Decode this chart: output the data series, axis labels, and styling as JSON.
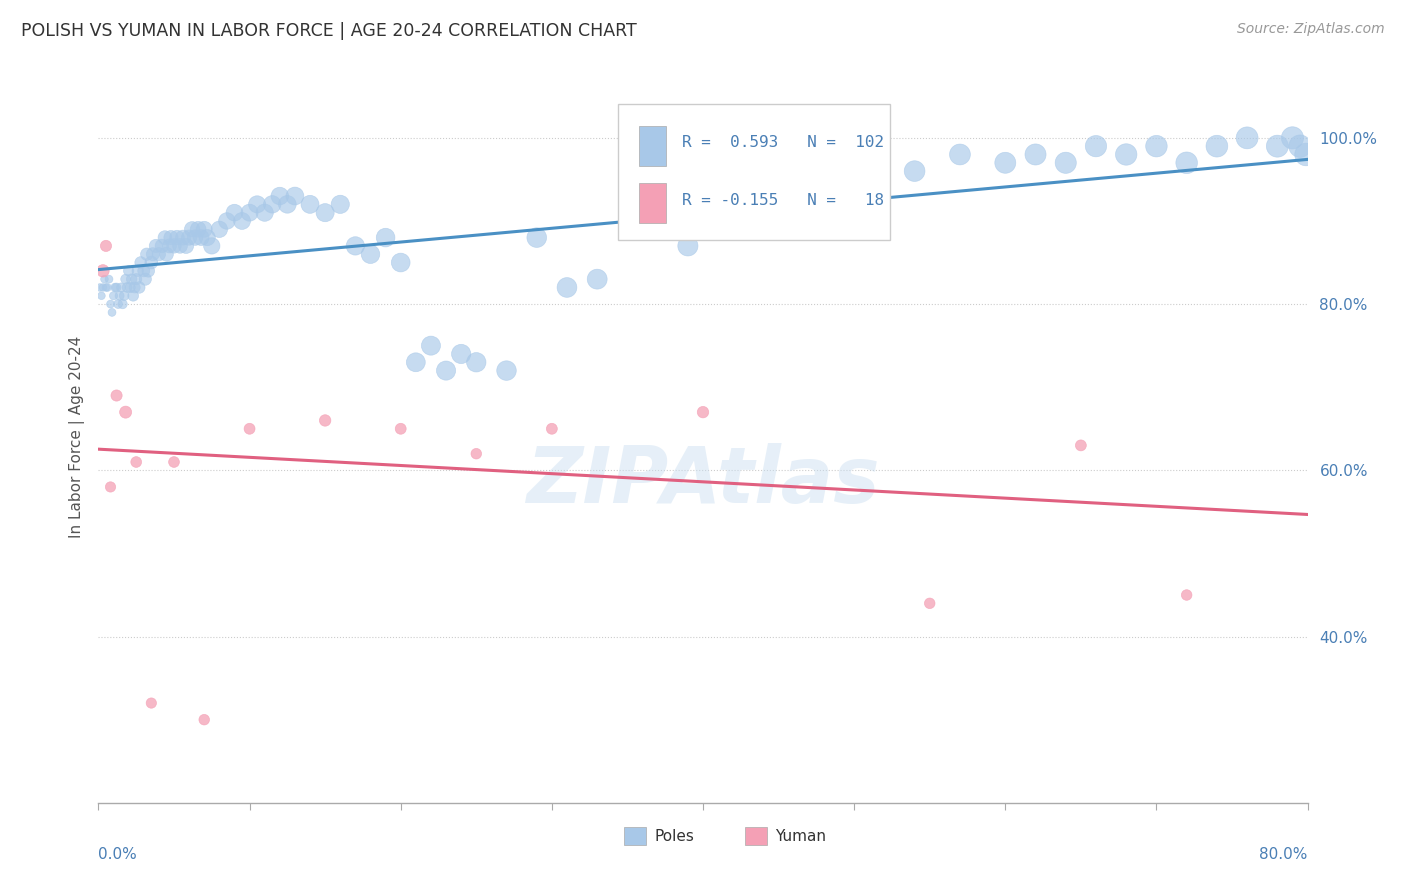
{
  "title": "POLISH VS YUMAN IN LABOR FORCE | AGE 20-24 CORRELATION CHART",
  "source": "Source: ZipAtlas.com",
  "ylabel": "In Labor Force | Age 20-24",
  "xmin": 0.0,
  "xmax": 0.8,
  "ymin": 0.2,
  "ymax": 1.08,
  "right_yticks": [
    0.4,
    0.6,
    0.8,
    1.0
  ],
  "right_yticklabels": [
    "40.0%",
    "60.0%",
    "80.0%",
    "100.0%"
  ],
  "poles_R": 0.593,
  "poles_N": 102,
  "yuman_R": -0.155,
  "yuman_N": 18,
  "blue_color": "#a8c8e8",
  "pink_color": "#f4a0b5",
  "blue_line_color": "#4a90c4",
  "pink_line_color": "#e06080",
  "legend_text_color": "#4a7fb5",
  "title_color": "#333333",
  "background_color": "#ffffff",
  "poles_x": [
    0.001,
    0.002,
    0.003,
    0.004,
    0.005,
    0.006,
    0.007,
    0.008,
    0.009,
    0.01,
    0.011,
    0.012,
    0.013,
    0.014,
    0.015,
    0.016,
    0.017,
    0.018,
    0.019,
    0.02,
    0.021,
    0.022,
    0.023,
    0.024,
    0.025,
    0.026,
    0.027,
    0.028,
    0.03,
    0.031,
    0.032,
    0.033,
    0.035,
    0.036,
    0.038,
    0.04,
    0.042,
    0.044,
    0.045,
    0.047,
    0.048,
    0.05,
    0.052,
    0.054,
    0.056,
    0.058,
    0.06,
    0.062,
    0.064,
    0.066,
    0.068,
    0.07,
    0.072,
    0.075,
    0.08,
    0.085,
    0.09,
    0.095,
    0.1,
    0.105,
    0.11,
    0.115,
    0.12,
    0.125,
    0.13,
    0.14,
    0.15,
    0.16,
    0.17,
    0.18,
    0.19,
    0.2,
    0.21,
    0.22,
    0.23,
    0.24,
    0.25,
    0.27,
    0.29,
    0.31,
    0.33,
    0.36,
    0.39,
    0.42,
    0.45,
    0.48,
    0.51,
    0.54,
    0.57,
    0.6,
    0.62,
    0.64,
    0.66,
    0.68,
    0.7,
    0.72,
    0.74,
    0.76,
    0.78,
    0.79,
    0.795,
    0.799
  ],
  "poles_y": [
    0.82,
    0.81,
    0.82,
    0.83,
    0.82,
    0.82,
    0.83,
    0.8,
    0.79,
    0.81,
    0.82,
    0.82,
    0.8,
    0.81,
    0.82,
    0.8,
    0.81,
    0.83,
    0.82,
    0.84,
    0.82,
    0.83,
    0.81,
    0.82,
    0.83,
    0.84,
    0.82,
    0.85,
    0.84,
    0.83,
    0.86,
    0.84,
    0.85,
    0.86,
    0.87,
    0.86,
    0.87,
    0.88,
    0.86,
    0.87,
    0.88,
    0.87,
    0.88,
    0.87,
    0.88,
    0.87,
    0.88,
    0.89,
    0.88,
    0.89,
    0.88,
    0.89,
    0.88,
    0.87,
    0.89,
    0.9,
    0.91,
    0.9,
    0.91,
    0.92,
    0.91,
    0.92,
    0.93,
    0.92,
    0.93,
    0.92,
    0.91,
    0.92,
    0.87,
    0.86,
    0.88,
    0.85,
    0.73,
    0.75,
    0.72,
    0.74,
    0.73,
    0.72,
    0.88,
    0.82,
    0.83,
    0.94,
    0.87,
    0.93,
    0.95,
    0.94,
    0.97,
    0.96,
    0.98,
    0.97,
    0.98,
    0.97,
    0.99,
    0.98,
    0.99,
    0.97,
    0.99,
    1.0,
    0.99,
    1.0,
    0.99,
    0.98
  ],
  "poles_sizes": [
    30,
    30,
    30,
    30,
    30,
    32,
    32,
    32,
    32,
    35,
    38,
    40,
    40,
    42,
    42,
    45,
    48,
    50,
    50,
    55,
    55,
    58,
    60,
    62,
    65,
    68,
    70,
    72,
    75,
    78,
    80,
    82,
    85,
    88,
    90,
    92,
    95,
    98,
    100,
    102,
    105,
    108,
    110,
    112,
    115,
    118,
    120,
    122,
    125,
    128,
    130,
    132,
    135,
    138,
    140,
    142,
    145,
    148,
    150,
    152,
    155,
    158,
    160,
    162,
    165,
    168,
    170,
    172,
    175,
    178,
    180,
    182,
    185,
    188,
    190,
    192,
    195,
    198,
    200,
    202,
    205,
    208,
    210,
    212,
    215,
    218,
    220,
    222,
    225,
    228,
    230,
    232,
    235,
    238,
    240,
    242,
    245,
    248,
    250,
    255,
    260,
    265
  ],
  "yuman_x": [
    0.003,
    0.005,
    0.008,
    0.012,
    0.018,
    0.025,
    0.035,
    0.05,
    0.07,
    0.1,
    0.15,
    0.2,
    0.25,
    0.3,
    0.4,
    0.55,
    0.65,
    0.72
  ],
  "yuman_y": [
    0.84,
    0.87,
    0.58,
    0.69,
    0.67,
    0.61,
    0.32,
    0.61,
    0.3,
    0.65,
    0.66,
    0.65,
    0.62,
    0.65,
    0.67,
    0.44,
    0.63,
    0.45
  ],
  "yuman_sizes": [
    80,
    65,
    55,
    65,
    75,
    60,
    55,
    60,
    58,
    62,
    68,
    62,
    58,
    62,
    68,
    58,
    62,
    58
  ]
}
